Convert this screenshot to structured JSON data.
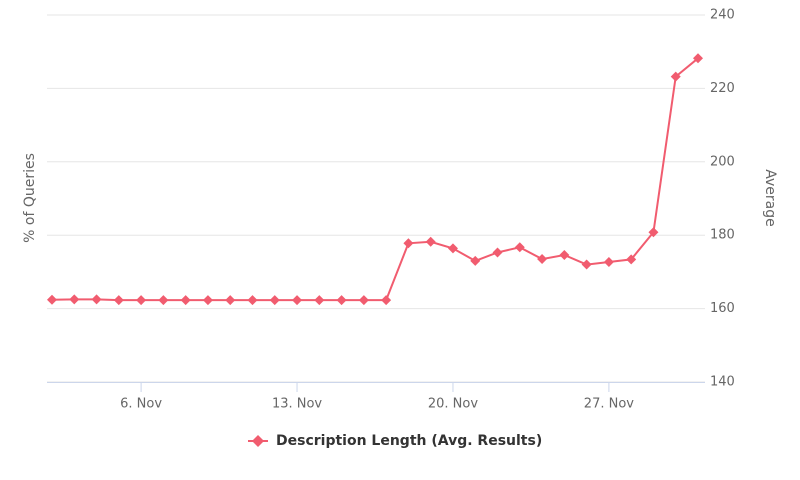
{
  "chart_data": {
    "type": "line",
    "y_axis_left_title": "% of Queries",
    "y_axis_right_title": "Average",
    "categories": [
      null,
      null,
      null,
      null,
      "6. Nov",
      null,
      null,
      null,
      null,
      null,
      null,
      "13. Nov",
      null,
      null,
      null,
      null,
      null,
      null,
      "20. Nov",
      null,
      null,
      null,
      null,
      null,
      null,
      "27. Nov",
      null,
      null,
      null,
      null
    ],
    "series": [
      {
        "name": "Description Length (Avg. Results)",
        "color": "#f15c6f",
        "axis": "y2",
        "values": [
          162.4,
          162.5,
          162.5,
          162.3,
          162.3,
          162.3,
          162.3,
          162.3,
          162.3,
          162.3,
          162.3,
          162.3,
          162.3,
          162.3,
          162.3,
          162.3,
          177.8,
          178.2,
          176.4,
          173.0,
          175.3,
          176.7,
          173.5,
          174.6,
          172.0,
          172.7,
          173.4,
          180.8,
          223.2,
          228.2
        ]
      }
    ],
    "y2lim": [
      140,
      240
    ],
    "y2ticks": [
      140,
      160,
      180,
      200,
      220,
      240
    ],
    "grid": true,
    "legend": "bottom"
  }
}
